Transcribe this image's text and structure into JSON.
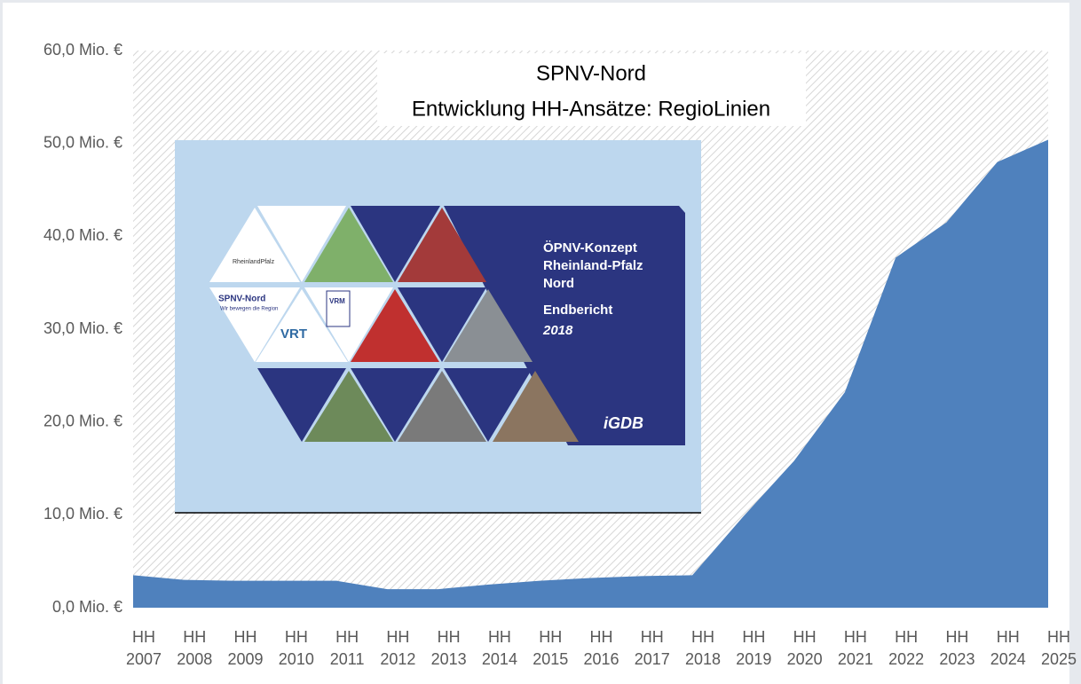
{
  "chart_data": {
    "type": "area",
    "title": "SPNV-Nord",
    "subtitle": "Entwicklung HH-Ansätze: RegioLinien",
    "categories": [
      "HH 2007",
      "HH 2008",
      "HH 2009",
      "HH 2010",
      "HH 2011",
      "HH 2012",
      "HH 2013",
      "HH 2014",
      "HH 2015",
      "HH 2016",
      "HH 2017",
      "HH 2018",
      "HH 2019",
      "HH 2020",
      "HH 2021",
      "HH 2022",
      "HH 2023",
      "HH 2024",
      "HH 2025"
    ],
    "values": [
      3.5,
      3.0,
      2.9,
      2.9,
      2.9,
      2.0,
      2.0,
      2.5,
      2.9,
      3.2,
      3.4,
      3.5,
      9.8,
      15.8,
      23.2,
      37.7,
      41.5,
      48.0,
      50.4
    ],
    "color": "#4f81bd",
    "ylim": [
      0,
      60
    ],
    "yticks": [
      {
        "value": 0,
        "label": "0,0 Mio. €"
      },
      {
        "value": 10,
        "label": "10,0 Mio. €"
      },
      {
        "value": 20,
        "label": "20,0 Mio. €"
      },
      {
        "value": 30,
        "label": "30,0 Mio. €"
      },
      {
        "value": 40,
        "label": "40,0 Mio. €"
      },
      {
        "value": 50,
        "label": "50,0 Mio. €"
      },
      {
        "value": 60,
        "label": "60,0 Mio. €"
      }
    ],
    "grid": false
  },
  "cover": {
    "lines": [
      "ÖPNV-Konzept",
      "Rheinland-Pfalz",
      "Nord"
    ],
    "report": "Endbericht",
    "year": "2018",
    "brand": "iGDB",
    "logos": [
      "RheinlandPfalz",
      "SPNV-Nord",
      "Wir bewegen die Region",
      "VRM",
      "VRT"
    ]
  }
}
